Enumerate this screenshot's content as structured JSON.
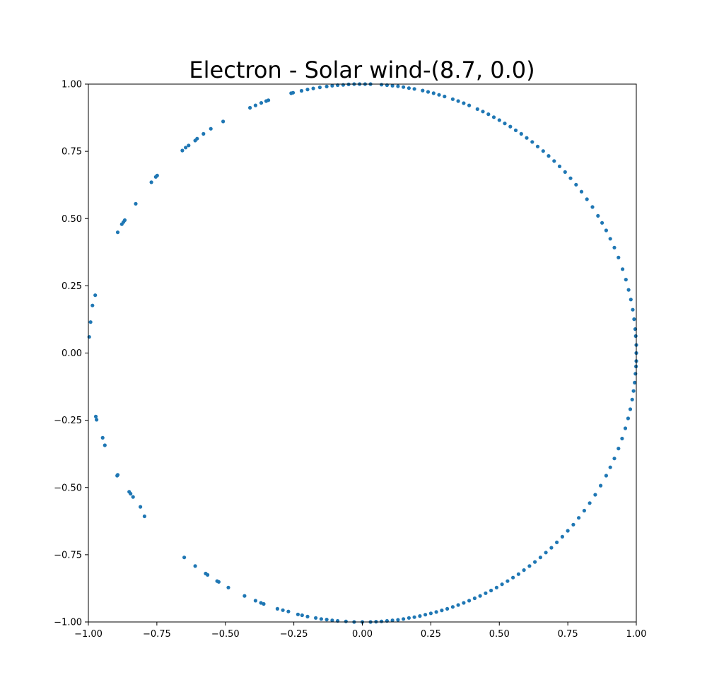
{
  "chart_data": {
    "type": "scatter",
    "title": "Electron - Solar wind-(8.7, 0.0)",
    "xlabel": "",
    "ylabel": "",
    "xlim": [
      -1.0,
      1.0
    ],
    "ylim": [
      -1.0,
      1.0
    ],
    "grid": false,
    "marker_color": "#1f77b4",
    "xticks": [
      -1.0,
      -0.75,
      -0.5,
      -0.25,
      0.0,
      0.25,
      0.5,
      0.75,
      1.0
    ],
    "yticks": [
      -1.0,
      -0.75,
      -0.5,
      -0.25,
      0.0,
      0.25,
      0.5,
      0.75,
      1.0
    ],
    "xtick_labels": [
      "−1.00",
      "−0.75",
      "−0.50",
      "−0.25",
      "0.00",
      "0.25",
      "0.50",
      "0.75",
      "1.00"
    ],
    "ytick_labels": [
      "−1.00",
      "−0.75",
      "−0.50",
      "−0.25",
      "0.00",
      "0.25",
      "0.50",
      "0.75",
      "1.00"
    ],
    "series": [
      {
        "points": [
          [
            -0.997,
            0.06
          ],
          [
            -0.992,
            0.115
          ],
          [
            -0.985,
            0.177
          ],
          [
            -0.975,
            0.215
          ],
          [
            -0.893,
            0.449
          ],
          [
            -0.878,
            0.479
          ],
          [
            -0.872,
            0.487
          ],
          [
            -0.867,
            0.494
          ],
          [
            -0.827,
            0.555
          ],
          [
            -0.77,
            0.635
          ],
          [
            -0.754,
            0.655
          ],
          [
            -0.749,
            0.66
          ],
          [
            -0.657,
            0.753
          ],
          [
            -0.645,
            0.764
          ],
          [
            -0.634,
            0.772
          ],
          [
            -0.61,
            0.79
          ],
          [
            -0.603,
            0.797
          ],
          [
            -0.58,
            0.815
          ],
          [
            -0.553,
            0.834
          ],
          [
            -0.508,
            0.861
          ],
          [
            -0.41,
            0.912
          ],
          [
            -0.39,
            0.921
          ],
          [
            -0.369,
            0.93
          ],
          [
            -0.351,
            0.937
          ],
          [
            -0.343,
            0.94
          ],
          [
            -0.26,
            0.966
          ],
          [
            -0.253,
            0.968
          ],
          [
            -0.222,
            0.975
          ],
          [
            -0.2,
            0.98
          ],
          [
            -0.179,
            0.984
          ],
          [
            -0.155,
            0.988
          ],
          [
            -0.13,
            0.991
          ],
          [
            -0.11,
            0.994
          ],
          [
            -0.09,
            0.996
          ],
          [
            -0.07,
            0.997
          ],
          [
            -0.05,
            0.999
          ],
          [
            -0.03,
            1.0
          ],
          [
            -0.01,
            1.0
          ],
          [
            0.01,
            1.0
          ],
          [
            0.03,
            1.0
          ],
          [
            0.07,
            0.998
          ],
          [
            0.09,
            0.996
          ],
          [
            0.11,
            0.994
          ],
          [
            0.13,
            0.992
          ],
          [
            0.15,
            0.989
          ],
          [
            0.17,
            0.985
          ],
          [
            0.19,
            0.982
          ],
          [
            0.22,
            0.976
          ],
          [
            0.24,
            0.971
          ],
          [
            0.26,
            0.966
          ],
          [
            0.28,
            0.96
          ],
          [
            0.3,
            0.954
          ],
          [
            0.33,
            0.944
          ],
          [
            0.35,
            0.937
          ],
          [
            0.37,
            0.929
          ],
          [
            0.39,
            0.921
          ],
          [
            0.42,
            0.907
          ],
          [
            0.44,
            0.898
          ],
          [
            0.46,
            0.888
          ],
          [
            0.48,
            0.877
          ],
          [
            0.5,
            0.866
          ],
          [
            0.52,
            0.854
          ],
          [
            0.54,
            0.842
          ],
          [
            0.56,
            0.828
          ],
          [
            0.58,
            0.815
          ],
          [
            0.6,
            0.8
          ],
          [
            0.62,
            0.785
          ],
          [
            0.64,
            0.768
          ],
          [
            0.66,
            0.751
          ],
          [
            0.68,
            0.733
          ],
          [
            0.7,
            0.714
          ],
          [
            0.72,
            0.694
          ],
          [
            0.74,
            0.673
          ],
          [
            0.76,
            0.65
          ],
          [
            0.78,
            0.626
          ],
          [
            0.8,
            0.6
          ],
          [
            0.82,
            0.572
          ],
          [
            0.84,
            0.543
          ],
          [
            0.86,
            0.51
          ],
          [
            0.875,
            0.484
          ],
          [
            0.89,
            0.456
          ],
          [
            0.905,
            0.425
          ],
          [
            0.92,
            0.392
          ],
          [
            0.935,
            0.355
          ],
          [
            0.95,
            0.312
          ],
          [
            0.962,
            0.273
          ],
          [
            0.972,
            0.235
          ],
          [
            0.98,
            0.199
          ],
          [
            0.987,
            0.161
          ],
          [
            0.992,
            0.126
          ],
          [
            0.996,
            0.089
          ],
          [
            0.998,
            0.063
          ],
          [
            1.0,
            0.03
          ],
          [
            1.0,
            0.0
          ],
          [
            1.0,
            -0.03
          ],
          [
            0.999,
            -0.05
          ],
          [
            0.997,
            -0.077
          ],
          [
            0.994,
            -0.11
          ],
          [
            0.99,
            -0.141
          ],
          [
            0.985,
            -0.173
          ],
          [
            0.978,
            -0.209
          ],
          [
            0.97,
            -0.243
          ],
          [
            0.96,
            -0.28
          ],
          [
            0.948,
            -0.318
          ],
          [
            0.935,
            -0.355
          ],
          [
            0.92,
            -0.392
          ],
          [
            0.905,
            -0.425
          ],
          [
            0.89,
            -0.456
          ],
          [
            0.87,
            -0.493
          ],
          [
            0.85,
            -0.527
          ],
          [
            0.83,
            -0.558
          ],
          [
            0.81,
            -0.586
          ],
          [
            0.79,
            -0.613
          ],
          [
            0.77,
            -0.638
          ],
          [
            0.75,
            -0.661
          ],
          [
            0.73,
            -0.683
          ],
          [
            0.71,
            -0.704
          ],
          [
            0.69,
            -0.724
          ],
          [
            0.67,
            -0.742
          ],
          [
            0.65,
            -0.76
          ],
          [
            0.63,
            -0.777
          ],
          [
            0.61,
            -0.792
          ],
          [
            0.59,
            -0.807
          ],
          [
            0.57,
            -0.822
          ],
          [
            0.55,
            -0.835
          ],
          [
            0.53,
            -0.848
          ],
          [
            0.51,
            -0.86
          ],
          [
            0.49,
            -0.872
          ],
          [
            0.47,
            -0.883
          ],
          [
            0.45,
            -0.893
          ],
          [
            0.43,
            -0.903
          ],
          [
            0.41,
            -0.912
          ],
          [
            0.39,
            -0.921
          ],
          [
            0.37,
            -0.929
          ],
          [
            0.35,
            -0.937
          ],
          [
            0.33,
            -0.944
          ],
          [
            0.31,
            -0.951
          ],
          [
            0.29,
            -0.957
          ],
          [
            0.27,
            -0.963
          ],
          [
            0.25,
            -0.968
          ],
          [
            0.23,
            -0.973
          ],
          [
            0.21,
            -0.978
          ],
          [
            0.19,
            -0.982
          ],
          [
            0.17,
            -0.985
          ],
          [
            0.15,
            -0.989
          ],
          [
            0.13,
            -0.992
          ],
          [
            0.11,
            -0.994
          ],
          [
            0.09,
            -0.996
          ],
          [
            0.07,
            -0.998
          ],
          [
            0.05,
            -0.999
          ],
          [
            0.03,
            -1.0
          ],
          [
            0.0,
            -1.0
          ],
          [
            -0.03,
            -1.0
          ],
          [
            -0.06,
            -0.998
          ],
          [
            -0.09,
            -0.996
          ],
          [
            -0.11,
            -0.994
          ],
          [
            -0.13,
            -0.991
          ],
          [
            -0.15,
            -0.989
          ],
          [
            -0.17,
            -0.985
          ],
          [
            -0.2,
            -0.98
          ],
          [
            -0.22,
            -0.975
          ],
          [
            -0.235,
            -0.972
          ],
          [
            -0.27,
            -0.961
          ],
          [
            -0.29,
            -0.956
          ],
          [
            -0.31,
            -0.951
          ],
          [
            -0.36,
            -0.933
          ],
          [
            -0.37,
            -0.929
          ],
          [
            -0.39,
            -0.921
          ],
          [
            -0.43,
            -0.903
          ],
          [
            -0.489,
            -0.872
          ],
          [
            -0.524,
            -0.851
          ],
          [
            -0.53,
            -0.848
          ],
          [
            -0.565,
            -0.825
          ],
          [
            -0.572,
            -0.82
          ],
          [
            -0.61,
            -0.792
          ],
          [
            -0.65,
            -0.76
          ],
          [
            -0.795,
            -0.607
          ],
          [
            -0.81,
            -0.572
          ],
          [
            -0.837,
            -0.535
          ],
          [
            -0.846,
            -0.523
          ],
          [
            -0.851,
            -0.516
          ],
          [
            -0.893,
            -0.453
          ],
          [
            -0.895,
            -0.456
          ],
          [
            -0.94,
            -0.343
          ],
          [
            -0.948,
            -0.315
          ],
          [
            -0.97,
            -0.248
          ],
          [
            -0.973,
            -0.236
          ]
        ]
      }
    ]
  }
}
